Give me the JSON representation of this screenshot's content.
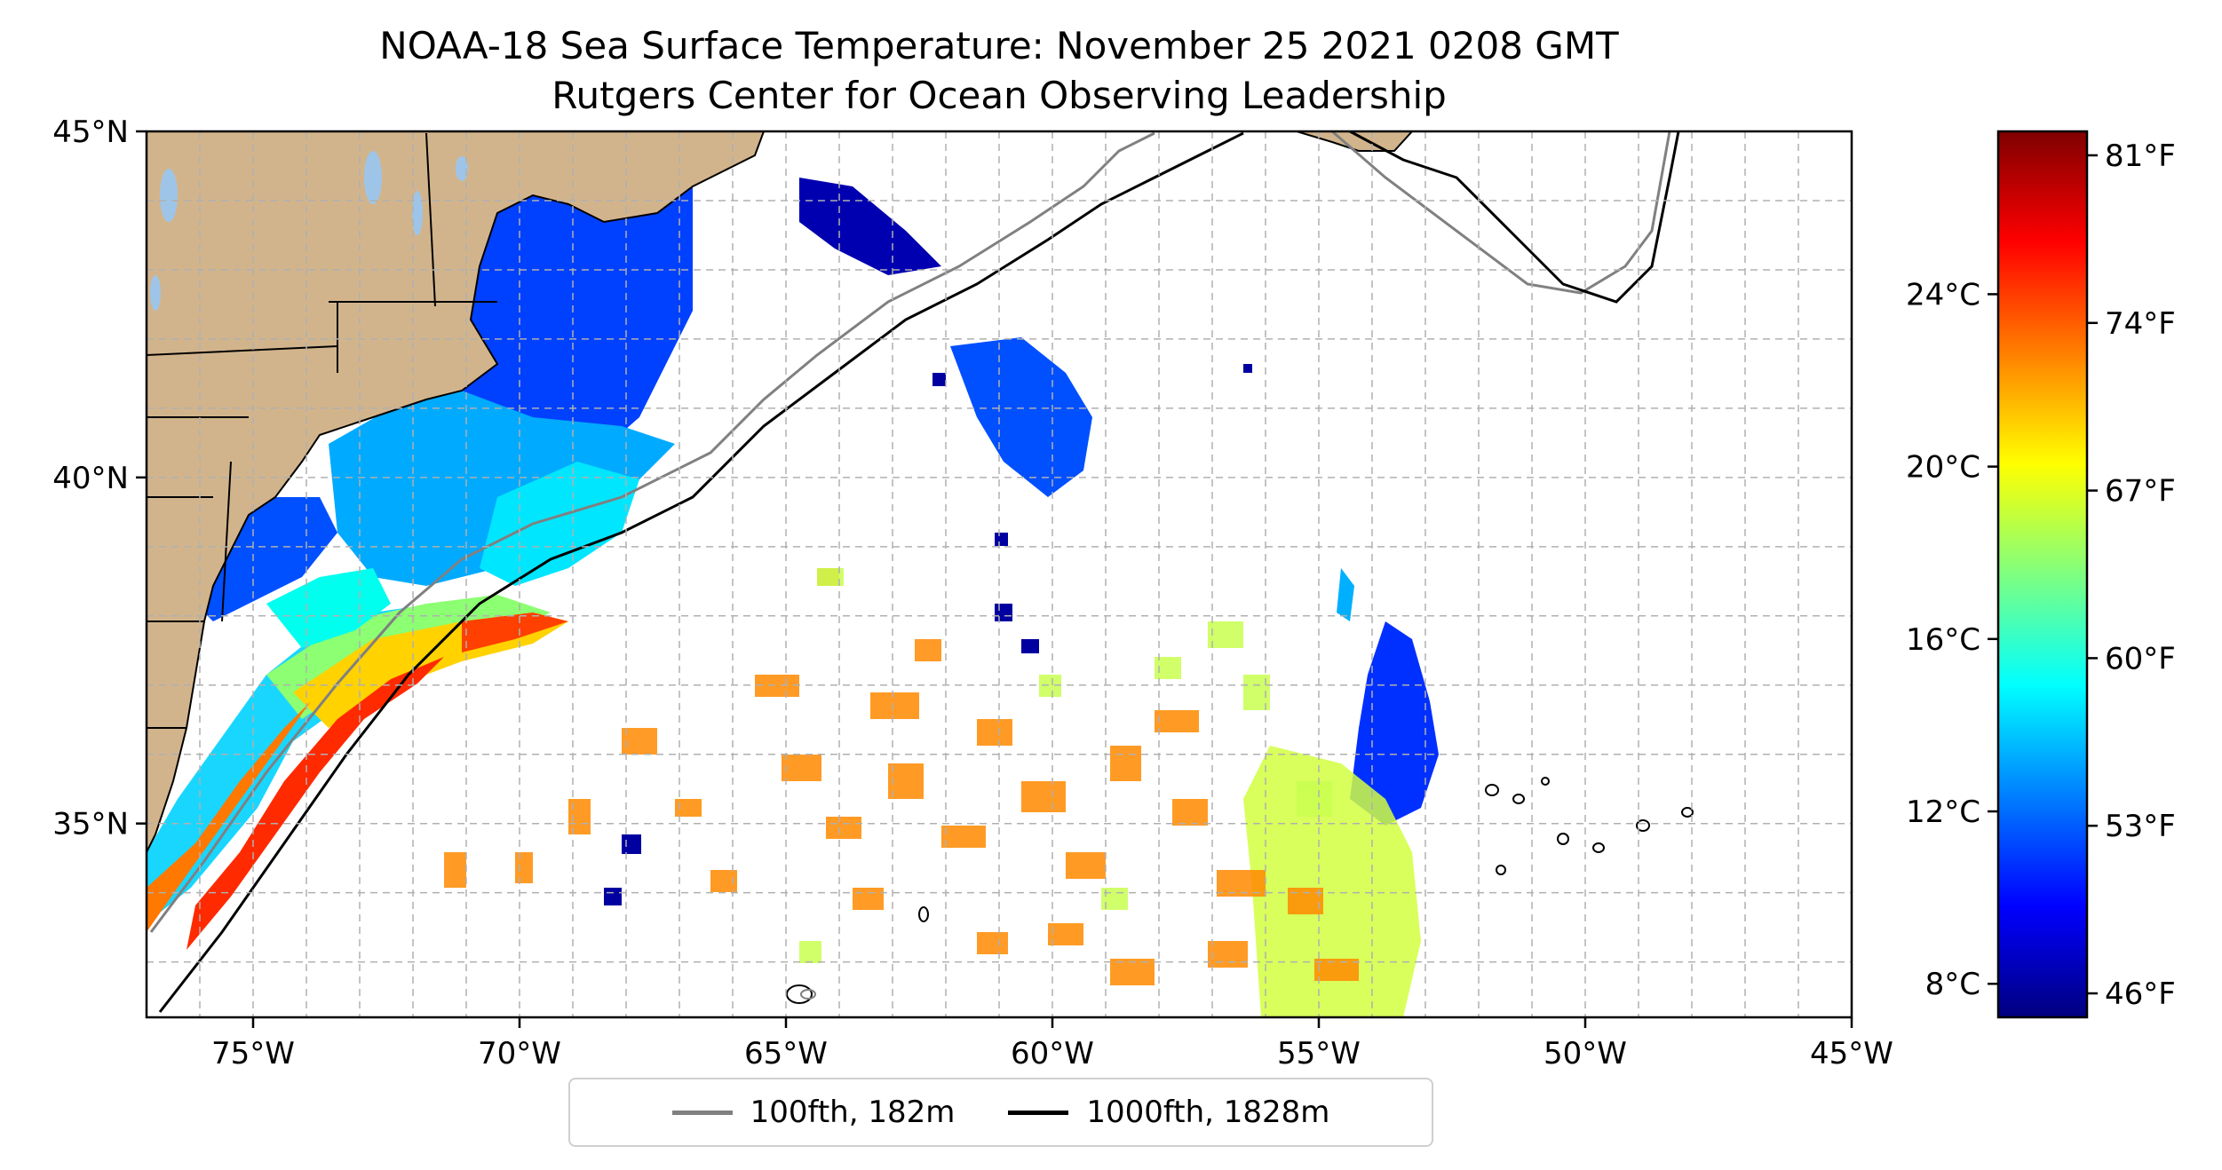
{
  "title": "NOAA-18 Sea Surface Temperature: November 25 2021 0208 GMT",
  "subtitle": "Rutgers Center for Ocean Observing Leadership",
  "map": {
    "lon_range": [
      -77,
      -45
    ],
    "lat_range": [
      32.2,
      45
    ],
    "lon_ticks": [
      {
        "lon": -75,
        "label": "75°W"
      },
      {
        "lon": -70,
        "label": "70°W"
      },
      {
        "lon": -65,
        "label": "65°W"
      },
      {
        "lon": -60,
        "label": "60°W"
      },
      {
        "lon": -55,
        "label": "55°W"
      },
      {
        "lon": -50,
        "label": "50°W"
      },
      {
        "lon": -45,
        "label": "45°W"
      }
    ],
    "lat_ticks": [
      {
        "lat": 45,
        "label": "45°N"
      },
      {
        "lat": 40,
        "label": "40°N"
      },
      {
        "lat": 35,
        "label": "35°N"
      }
    ],
    "gridlines": true,
    "colors": {
      "land": "#d2b48c",
      "lakes": "#9ec5e8",
      "isobath_100": "#808080",
      "isobath_1000": "#000000"
    }
  },
  "colorbar": {
    "celsius_ticks": [
      {
        "value": 24,
        "label": "24°C"
      },
      {
        "value": 20,
        "label": "20°C"
      },
      {
        "value": 16,
        "label": "16°C"
      },
      {
        "value": 12,
        "label": "12°C"
      },
      {
        "value": 8,
        "label": "8°C"
      }
    ],
    "fahrenheit_ticks": [
      {
        "value": 81,
        "label": "81°F"
      },
      {
        "value": 74,
        "label": "74°F"
      },
      {
        "value": 67,
        "label": "67°F"
      },
      {
        "value": 60,
        "label": "60°F"
      },
      {
        "value": 53,
        "label": "53°F"
      },
      {
        "value": 46,
        "label": "46°F"
      }
    ],
    "range_f": [
      45,
      82
    ],
    "colormap": [
      "#00007f",
      "#0000ff",
      "#007fff",
      "#00ffff",
      "#7fff7f",
      "#ffff00",
      "#ff7f00",
      "#ff0000",
      "#7f0000"
    ]
  },
  "legend": {
    "items": [
      {
        "label": "100fth, 182m",
        "color": "#808080"
      },
      {
        "label": "1000fth, 1828m",
        "color": "#000000"
      }
    ],
    "placement": "bottom-center"
  }
}
